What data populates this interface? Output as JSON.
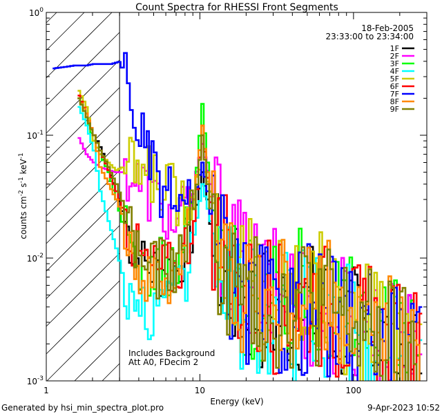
{
  "chart_data": {
    "type": "line",
    "title": "Count Spectra for RHESSI Front Segments",
    "xlabel": "Energy (keV)",
    "ylabel_base": "counts cm",
    "ylabel_exp1": "-2",
    "ylabel_mid": " s",
    "ylabel_exp2": "-1",
    "ylabel_end": " keV",
    "ylabel_exp3": "-1",
    "xscale": "log",
    "yscale": "log",
    "xlim": [
      1,
      300
    ],
    "ylim": [
      0.001,
      1
    ],
    "x_ticks": [
      {
        "value": 1,
        "label": "1"
      },
      {
        "value": 10,
        "label": "10"
      },
      {
        "value": 100,
        "label": "100"
      }
    ],
    "y_ticks": [
      {
        "value": 1,
        "base": "10",
        "exp": "0"
      },
      {
        "value": 0.1,
        "base": "10",
        "exp": "-1"
      },
      {
        "value": 0.01,
        "base": "10",
        "exp": "-2"
      },
      {
        "value": 0.001,
        "base": "10",
        "exp": "-3"
      }
    ],
    "hatched_region_kev": [
      1,
      3
    ],
    "date": "18-Feb-2005",
    "time_range": "23:33:00 to 23:34:00",
    "annotations": [
      "Includes Background",
      "Att A0, FDecim 2"
    ],
    "series": [
      {
        "name": "1F",
        "color": "#000000",
        "points": [
          [
            1.6,
            0.2
          ],
          [
            1.8,
            0.15
          ],
          [
            2.0,
            0.1
          ],
          [
            2.2,
            0.08
          ],
          [
            2.5,
            0.055
          ],
          [
            2.8,
            0.035
          ],
          [
            3.2,
            0.02
          ],
          [
            3.6,
            0.012
          ],
          [
            4.0,
            0.009
          ],
          [
            5.0,
            0.008
          ],
          [
            7.0,
            0.008
          ],
          [
            9.0,
            0.02
          ],
          [
            10.2,
            0.05
          ],
          [
            11.0,
            0.03
          ],
          [
            12.0,
            0.012
          ],
          [
            15.0,
            0.006
          ],
          [
            20.0,
            0.004
          ],
          [
            30.0,
            0.0035
          ],
          [
            50.0,
            0.004
          ],
          [
            80.0,
            0.003
          ],
          [
            120.0,
            0.0022
          ],
          [
            200.0,
            0.0016
          ],
          [
            280.0,
            0.0012
          ]
        ]
      },
      {
        "name": "2F",
        "color": "#ff00ff",
        "points": [
          [
            1.6,
            0.095
          ],
          [
            1.8,
            0.07
          ],
          [
            2.0,
            0.06
          ],
          [
            2.2,
            0.055
          ],
          [
            2.5,
            0.052
          ],
          [
            2.8,
            0.05
          ],
          [
            3.2,
            0.05
          ],
          [
            3.6,
            0.045
          ],
          [
            4.0,
            0.04
          ],
          [
            5.0,
            0.03
          ],
          [
            6.0,
            0.022
          ],
          [
            7.0,
            0.018
          ],
          [
            8.5,
            0.03
          ],
          [
            10.2,
            0.085
          ],
          [
            11.5,
            0.04
          ],
          [
            13.0,
            0.02
          ],
          [
            15.0,
            0.012
          ],
          [
            20.0,
            0.007
          ],
          [
            30.0,
            0.005
          ],
          [
            50.0,
            0.0045
          ],
          [
            80.0,
            0.0035
          ],
          [
            120.0,
            0.0025
          ],
          [
            200.0,
            0.0018
          ],
          [
            280.0,
            0.0014
          ]
        ]
      },
      {
        "name": "3F",
        "color": "#00ff00",
        "points": [
          [
            1.6,
            0.2
          ],
          [
            1.8,
            0.14
          ],
          [
            2.0,
            0.09
          ],
          [
            2.2,
            0.07
          ],
          [
            2.5,
            0.05
          ],
          [
            2.8,
            0.03
          ],
          [
            3.2,
            0.016
          ],
          [
            4.0,
            0.009
          ],
          [
            5.0,
            0.008
          ],
          [
            7.0,
            0.009
          ],
          [
            9.0,
            0.03
          ],
          [
            10.2,
            0.18
          ],
          [
            11.0,
            0.06
          ],
          [
            12.0,
            0.02
          ],
          [
            15.0,
            0.008
          ],
          [
            20.0,
            0.005
          ],
          [
            30.0,
            0.004
          ],
          [
            50.0,
            0.006
          ],
          [
            80.0,
            0.004
          ],
          [
            120.0,
            0.0028
          ],
          [
            200.0,
            0.002
          ],
          [
            280.0,
            0.0014
          ]
        ]
      },
      {
        "name": "4F",
        "color": "#00ffff",
        "points": [
          [
            1.6,
            0.17
          ],
          [
            1.8,
            0.12
          ],
          [
            2.0,
            0.075
          ],
          [
            2.2,
            0.035
          ],
          [
            2.5,
            0.02
          ],
          [
            2.8,
            0.012
          ],
          [
            3.2,
            0.006
          ],
          [
            3.6,
            0.004
          ],
          [
            4.0,
            0.006
          ],
          [
            4.8,
            0.002
          ],
          [
            5.2,
            0.006
          ],
          [
            6.0,
            0.004
          ],
          [
            8.0,
            0.006
          ],
          [
            10.2,
            0.04
          ],
          [
            11.5,
            0.02
          ],
          [
            13.0,
            0.01
          ],
          [
            16.0,
            0.005
          ],
          [
            20.0,
            0.0035
          ],
          [
            30.0,
            0.003
          ],
          [
            50.0,
            0.0035
          ],
          [
            80.0,
            0.0028
          ],
          [
            120.0,
            0.002
          ],
          [
            200.0,
            0.0015
          ],
          [
            280.0,
            0.0011
          ]
        ]
      },
      {
        "name": "5F",
        "color": "#cccc00",
        "points": [
          [
            1.6,
            0.23
          ],
          [
            1.8,
            0.17
          ],
          [
            2.0,
            0.09
          ],
          [
            2.2,
            0.07
          ],
          [
            2.5,
            0.06
          ],
          [
            2.8,
            0.052
          ],
          [
            3.2,
            0.056
          ],
          [
            3.6,
            0.055
          ],
          [
            4.0,
            0.05
          ],
          [
            5.0,
            0.045
          ],
          [
            6.0,
            0.04
          ],
          [
            7.0,
            0.03
          ],
          [
            8.5,
            0.035
          ],
          [
            10.2,
            0.06
          ],
          [
            11.5,
            0.035
          ],
          [
            13.0,
            0.018
          ],
          [
            15.0,
            0.011
          ],
          [
            20.0,
            0.007
          ],
          [
            30.0,
            0.006
          ],
          [
            40.0,
            0.0055
          ],
          [
            60.0,
            0.005
          ],
          [
            80.0,
            0.0035
          ],
          [
            120.0,
            0.0025
          ],
          [
            200.0,
            0.0018
          ],
          [
            280.0,
            0.0013
          ]
        ]
      },
      {
        "name": "6F",
        "color": "#ff0000",
        "points": [
          [
            1.6,
            0.21
          ],
          [
            1.8,
            0.15
          ],
          [
            2.0,
            0.1
          ],
          [
            2.2,
            0.075
          ],
          [
            2.5,
            0.052
          ],
          [
            2.8,
            0.035
          ],
          [
            3.2,
            0.022
          ],
          [
            3.6,
            0.014
          ],
          [
            4.0,
            0.01
          ],
          [
            5.0,
            0.008
          ],
          [
            7.0,
            0.008
          ],
          [
            9.0,
            0.02
          ],
          [
            10.2,
            0.12
          ],
          [
            11.0,
            0.045
          ],
          [
            12.0,
            0.018
          ],
          [
            15.0,
            0.008
          ],
          [
            20.0,
            0.005
          ],
          [
            30.0,
            0.004
          ],
          [
            50.0,
            0.005
          ],
          [
            80.0,
            0.0035
          ],
          [
            120.0,
            0.0025
          ],
          [
            200.0,
            0.0018
          ],
          [
            280.0,
            0.0013
          ]
        ]
      },
      {
        "name": "7F",
        "color": "#0000ff",
        "points": [
          [
            1.1,
            0.35
          ],
          [
            1.3,
            0.36
          ],
          [
            1.5,
            0.37
          ],
          [
            1.8,
            0.37
          ],
          [
            2.0,
            0.38
          ],
          [
            2.3,
            0.38
          ],
          [
            2.6,
            0.38
          ],
          [
            2.9,
            0.395
          ],
          [
            3.2,
            0.32
          ],
          [
            3.5,
            0.18
          ],
          [
            4.0,
            0.11
          ],
          [
            4.5,
            0.065
          ],
          [
            5.0,
            0.045
          ],
          [
            6.0,
            0.032
          ],
          [
            7.0,
            0.028
          ],
          [
            8.0,
            0.026
          ],
          [
            9.0,
            0.03
          ],
          [
            10.2,
            0.06
          ],
          [
            11.0,
            0.035
          ],
          [
            12.0,
            0.015
          ],
          [
            15.0,
            0.007
          ],
          [
            20.0,
            0.004
          ],
          [
            30.0,
            0.0035
          ],
          [
            50.0,
            0.004
          ],
          [
            80.0,
            0.003
          ],
          [
            120.0,
            0.0022
          ],
          [
            200.0,
            0.0016
          ],
          [
            280.0,
            0.0012
          ]
        ]
      },
      {
        "name": "8F",
        "color": "#ff8800",
        "points": [
          [
            1.6,
            0.2
          ],
          [
            1.8,
            0.15
          ],
          [
            2.0,
            0.1
          ],
          [
            2.2,
            0.055
          ],
          [
            2.5,
            0.04
          ],
          [
            2.8,
            0.03
          ],
          [
            3.2,
            0.02
          ],
          [
            3.6,
            0.012
          ],
          [
            4.0,
            0.007
          ],
          [
            5.0,
            0.006
          ],
          [
            7.0,
            0.008
          ],
          [
            9.0,
            0.03
          ],
          [
            10.2,
            0.12
          ],
          [
            11.0,
            0.05
          ],
          [
            12.0,
            0.02
          ],
          [
            15.0,
            0.008
          ],
          [
            20.0,
            0.005
          ],
          [
            30.0,
            0.004
          ],
          [
            50.0,
            0.005
          ],
          [
            80.0,
            0.0035
          ],
          [
            120.0,
            0.0025
          ],
          [
            200.0,
            0.0018
          ],
          [
            280.0,
            0.0013
          ]
        ]
      },
      {
        "name": "9F",
        "color": "#808000",
        "points": [
          [
            1.6,
            0.2
          ],
          [
            1.8,
            0.14
          ],
          [
            2.0,
            0.1
          ],
          [
            2.2,
            0.075
          ],
          [
            2.5,
            0.055
          ],
          [
            2.8,
            0.04
          ],
          [
            3.2,
            0.025
          ],
          [
            3.6,
            0.015
          ],
          [
            4.0,
            0.01
          ],
          [
            5.0,
            0.008
          ],
          [
            7.0,
            0.009
          ],
          [
            9.0,
            0.025
          ],
          [
            10.2,
            0.1
          ],
          [
            11.0,
            0.04
          ],
          [
            12.0,
            0.016
          ],
          [
            15.0,
            0.007
          ],
          [
            20.0,
            0.0045
          ],
          [
            30.0,
            0.004
          ],
          [
            50.0,
            0.005
          ],
          [
            80.0,
            0.0035
          ],
          [
            120.0,
            0.0025
          ],
          [
            200.0,
            0.0018
          ],
          [
            280.0,
            0.0013
          ]
        ]
      }
    ]
  },
  "footer": {
    "generated_by": "Generated by hsi_min_spectra_plot.pro",
    "timestamp": "9-Apr-2023 10:52"
  }
}
